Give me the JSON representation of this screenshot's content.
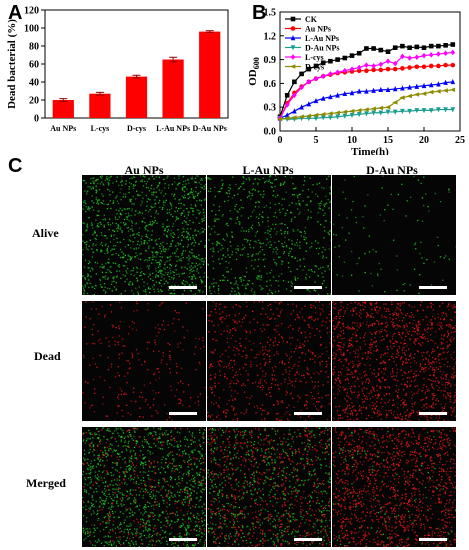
{
  "panels": {
    "a": "A",
    "b": "B",
    "c": "C"
  },
  "chart_data": [
    {
      "type": "bar",
      "categories": [
        "Au NPs",
        "L-cys",
        "D-cys",
        "L-Au NPs",
        "D-Au NPs"
      ],
      "values": [
        20,
        27,
        46,
        65,
        96
      ],
      "errors": [
        1.5,
        1.5,
        1.5,
        2.5,
        1
      ],
      "ylabel": "Dead bacterial (%)",
      "ylim": [
        0,
        120
      ],
      "yticks": [
        0,
        20,
        40,
        60,
        80,
        100,
        120
      ],
      "color": "#ff0000"
    },
    {
      "type": "line",
      "xlabel": "Time(h)",
      "ylabel": "OD600",
      "ylabel_main": "OD",
      "ylabel_sub": "600",
      "xlim": [
        0,
        25
      ],
      "ylim": [
        0,
        1.5
      ],
      "xticks": [
        0,
        5,
        10,
        15,
        20,
        25
      ],
      "yticks": [
        0.0,
        0.3,
        0.6,
        0.9,
        1.2,
        1.5
      ],
      "x": [
        0,
        1,
        2,
        3,
        4,
        5,
        6,
        7,
        8,
        9,
        10,
        11,
        12,
        13,
        14,
        15,
        16,
        17,
        18,
        19,
        20,
        21,
        22,
        23,
        24
      ],
      "legend_position": "top-left",
      "series": [
        {
          "name": "CK",
          "color": "#000000",
          "marker": "square",
          "values": [
            0.18,
            0.45,
            0.62,
            0.72,
            0.78,
            0.82,
            0.86,
            0.88,
            0.9,
            0.92,
            0.95,
            0.98,
            1.04,
            1.04,
            1.02,
            1.0,
            1.05,
            1.07,
            1.05,
            1.06,
            1.05,
            1.07,
            1.07,
            1.08,
            1.09
          ]
        },
        {
          "name": "Au NPs",
          "color": "#ff0000",
          "marker": "circle",
          "values": [
            0.16,
            0.35,
            0.48,
            0.56,
            0.62,
            0.66,
            0.69,
            0.71,
            0.73,
            0.74,
            0.75,
            0.76,
            0.76,
            0.77,
            0.77,
            0.78,
            0.78,
            0.79,
            0.8,
            0.81,
            0.81,
            0.82,
            0.82,
            0.83,
            0.83
          ]
        },
        {
          "name": "L-Au NPs",
          "color": "#0000ff",
          "marker": "triangle",
          "values": [
            0.16,
            0.2,
            0.25,
            0.3,
            0.34,
            0.38,
            0.41,
            0.43,
            0.45,
            0.47,
            0.48,
            0.5,
            0.5,
            0.51,
            0.52,
            0.52,
            0.53,
            0.54,
            0.55,
            0.56,
            0.57,
            0.58,
            0.59,
            0.61,
            0.62
          ]
        },
        {
          "name": "D-Au NPs",
          "color": "#1a9e8f",
          "marker": "triangle-down",
          "values": [
            0.16,
            0.15,
            0.15,
            0.16,
            0.16,
            0.16,
            0.17,
            0.17,
            0.18,
            0.19,
            0.2,
            0.21,
            0.22,
            0.23,
            0.23,
            0.24,
            0.24,
            0.25,
            0.25,
            0.26,
            0.26,
            0.26,
            0.27,
            0.27,
            0.27
          ]
        },
        {
          "name": "L-cys",
          "color": "#ff00ff",
          "marker": "diamond",
          "values": [
            0.16,
            0.33,
            0.45,
            0.55,
            0.62,
            0.66,
            0.69,
            0.72,
            0.74,
            0.76,
            0.78,
            0.8,
            0.83,
            0.82,
            0.84,
            0.88,
            0.85,
            0.94,
            0.92,
            0.93,
            0.95,
            0.96,
            0.97,
            0.98,
            0.99
          ]
        },
        {
          "name": "D-cys",
          "color": "#8b8b00",
          "marker": "triangle-left",
          "values": [
            0.15,
            0.16,
            0.17,
            0.18,
            0.19,
            0.2,
            0.21,
            0.22,
            0.23,
            0.24,
            0.25,
            0.26,
            0.27,
            0.28,
            0.29,
            0.3,
            0.36,
            0.42,
            0.44,
            0.46,
            0.47,
            0.49,
            0.5,
            0.51,
            0.52
          ]
        }
      ]
    }
  ],
  "microscopy": {
    "columns": [
      "Au NPs",
      "L-Au NPs",
      "D-Au NPs"
    ],
    "rows": [
      "Alive",
      "Dead",
      "Merged"
    ],
    "green_density": [
      0.9,
      0.5,
      0.08
    ],
    "red_density": [
      0.2,
      0.5,
      0.95
    ],
    "alive_color": "#22c722",
    "dead_color": "#e8161b"
  }
}
